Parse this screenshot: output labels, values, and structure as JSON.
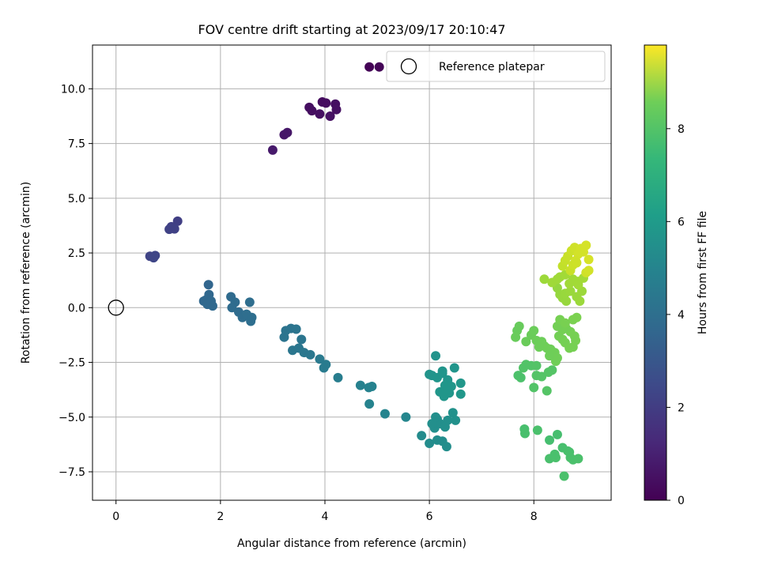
{
  "chart_data": {
    "type": "scatter",
    "title": "FOV centre drift starting at 2023/09/17 20:10:47",
    "xlabel": "Angular distance from reference (arcmin)",
    "ylabel": "Rotation from reference (arcmin)",
    "colorbar_label": "Hours from first FF file",
    "colormap": "viridis",
    "xlim": [
      -0.45,
      9.48
    ],
    "ylim": [
      -8.8,
      12.0
    ],
    "clim": [
      0,
      9.8
    ],
    "xticks": [
      0,
      2,
      4,
      6,
      8
    ],
    "yticks": [
      -7.5,
      -5.0,
      -2.5,
      0.0,
      2.5,
      5.0,
      7.5,
      10.0
    ],
    "cticks": [
      0,
      2,
      4,
      6,
      8
    ],
    "grid": true,
    "legend": {
      "position": "upper right",
      "entries": [
        "Reference platepar"
      ]
    },
    "reference_point": {
      "x": 0,
      "y": 0,
      "label": "Reference platepar"
    },
    "points": [
      [
        4.85,
        11.0,
        0.05
      ],
      [
        5.04,
        11.0,
        0.1
      ],
      [
        3.95,
        9.4,
        0.3
      ],
      [
        4.02,
        9.35,
        0.32
      ],
      [
        3.7,
        9.15,
        0.35
      ],
      [
        3.75,
        9.0,
        0.37
      ],
      [
        3.9,
        8.85,
        0.4
      ],
      [
        4.2,
        9.3,
        0.38
      ],
      [
        4.22,
        9.05,
        0.42
      ],
      [
        4.1,
        8.75,
        0.45
      ],
      [
        3.22,
        7.9,
        0.6
      ],
      [
        3.28,
        8.0,
        0.62
      ],
      [
        3.0,
        7.2,
        0.7
      ],
      [
        1.18,
        3.95,
        1.85
      ],
      [
        1.06,
        3.7,
        1.9
      ],
      [
        1.02,
        3.58,
        1.95
      ],
      [
        1.12,
        3.6,
        1.92
      ],
      [
        0.65,
        2.35,
        2.0
      ],
      [
        0.75,
        2.38,
        2.05
      ],
      [
        0.72,
        2.28,
        2.07
      ],
      [
        1.77,
        1.05,
        3.2
      ],
      [
        1.78,
        0.6,
        3.25
      ],
      [
        1.72,
        0.35,
        3.27
      ],
      [
        1.68,
        0.3,
        3.28
      ],
      [
        1.75,
        0.15,
        3.3
      ],
      [
        1.82,
        0.3,
        3.3
      ],
      [
        1.85,
        0.08,
        3.32
      ],
      [
        2.2,
        0.5,
        3.4
      ],
      [
        2.28,
        0.25,
        3.42
      ],
      [
        2.22,
        0.0,
        3.45
      ],
      [
        2.35,
        -0.2,
        3.45
      ],
      [
        2.42,
        -0.45,
        3.48
      ],
      [
        2.5,
        -0.3,
        3.5
      ],
      [
        2.56,
        0.25,
        3.5
      ],
      [
        2.6,
        -0.45,
        3.52
      ],
      [
        2.58,
        -0.62,
        3.52
      ],
      [
        3.25,
        -1.05,
        3.75
      ],
      [
        3.35,
        -0.95,
        3.78
      ],
      [
        3.45,
        -0.98,
        3.8
      ],
      [
        3.22,
        -1.35,
        3.77
      ],
      [
        3.55,
        -1.45,
        3.82
      ],
      [
        3.38,
        -1.95,
        3.85
      ],
      [
        3.5,
        -1.85,
        3.87
      ],
      [
        3.6,
        -2.05,
        3.88
      ],
      [
        3.72,
        -2.15,
        3.9
      ],
      [
        3.9,
        -2.35,
        4.0
      ],
      [
        4.02,
        -2.6,
        4.05
      ],
      [
        3.98,
        -2.75,
        4.08
      ],
      [
        4.25,
        -3.2,
        4.15
      ],
      [
        4.68,
        -3.55,
        4.3
      ],
      [
        4.84,
        -3.65,
        4.35
      ],
      [
        4.9,
        -3.6,
        4.37
      ],
      [
        4.85,
        -4.4,
        4.4
      ],
      [
        5.15,
        -4.85,
        4.45
      ],
      [
        5.55,
        -5.0,
        4.5
      ],
      [
        5.85,
        -5.85,
        4.7
      ],
      [
        6.0,
        -6.2,
        4.75
      ],
      [
        6.15,
        -6.05,
        4.78
      ],
      [
        6.25,
        -6.1,
        4.8
      ],
      [
        6.33,
        -6.35,
        4.82
      ],
      [
        6.1,
        -5.5,
        4.85
      ],
      [
        6.15,
        -5.1,
        4.87
      ],
      [
        6.2,
        -5.3,
        4.88
      ],
      [
        6.3,
        -5.45,
        4.9
      ],
      [
        6.35,
        -5.15,
        4.9
      ],
      [
        6.45,
        -4.8,
        4.92
      ],
      [
        6.5,
        -5.15,
        4.95
      ],
      [
        6.05,
        -5.3,
        4.88
      ],
      [
        6.12,
        -5.0,
        4.87
      ],
      [
        6.12,
        -2.2,
        5.0
      ],
      [
        6.0,
        -3.05,
        5.05
      ],
      [
        6.05,
        -3.1,
        5.05
      ],
      [
        6.15,
        -3.2,
        5.08
      ],
      [
        6.25,
        -3.0,
        5.1
      ],
      [
        6.35,
        -3.3,
        5.1
      ],
      [
        6.3,
        -3.55,
        5.12
      ],
      [
        6.2,
        -3.85,
        5.12
      ],
      [
        6.38,
        -3.9,
        5.14
      ],
      [
        6.28,
        -4.05,
        5.15
      ],
      [
        6.48,
        -2.75,
        5.1
      ],
      [
        6.6,
        -3.45,
        5.17
      ],
      [
        6.6,
        -3.95,
        5.17
      ],
      [
        6.42,
        -3.6,
        5.15
      ],
      [
        6.25,
        -2.9,
        5.1
      ],
      [
        6.32,
        -3.75,
        5.13
      ],
      [
        7.82,
        -5.55,
        6.9
      ],
      [
        7.83,
        -5.75,
        6.92
      ],
      [
        8.07,
        -5.6,
        6.95
      ],
      [
        8.3,
        -6.05,
        6.85
      ],
      [
        8.45,
        -5.8,
        6.87
      ],
      [
        8.55,
        -6.4,
        6.9
      ],
      [
        8.65,
        -6.55,
        6.92
      ],
      [
        8.3,
        -6.9,
        6.93
      ],
      [
        8.42,
        -6.85,
        6.95
      ],
      [
        8.58,
        -7.7,
        6.95
      ],
      [
        8.75,
        -6.95,
        6.95
      ],
      [
        8.85,
        -6.9,
        6.97
      ],
      [
        8.7,
        -6.85,
        6.96
      ],
      [
        8.4,
        -6.7,
        6.94
      ],
      [
        8.68,
        -6.6,
        6.93
      ],
      [
        7.7,
        -3.1,
        7.0
      ],
      [
        7.75,
        -3.2,
        7.0
      ],
      [
        7.85,
        -2.6,
        7.1
      ],
      [
        7.8,
        -2.75,
        7.08
      ],
      [
        7.95,
        -2.65,
        7.1
      ],
      [
        8.0,
        -3.65,
        7.1
      ],
      [
        8.05,
        -2.65,
        7.12
      ],
      [
        8.05,
        -3.1,
        7.12
      ],
      [
        8.15,
        -3.15,
        7.14
      ],
      [
        8.25,
        -3.8,
        7.15
      ],
      [
        8.28,
        -2.95,
        7.15
      ],
      [
        8.35,
        -2.85,
        7.15
      ],
      [
        7.72,
        -0.85,
        7.5
      ],
      [
        7.68,
        -1.05,
        7.5
      ],
      [
        7.65,
        -1.35,
        7.52
      ],
      [
        7.85,
        -1.55,
        7.55
      ],
      [
        7.95,
        -1.25,
        7.55
      ],
      [
        8.0,
        -1.05,
        7.57
      ],
      [
        8.05,
        -1.5,
        7.58
      ],
      [
        8.15,
        -1.55,
        7.6
      ],
      [
        8.2,
        -1.75,
        7.6
      ],
      [
        8.32,
        -1.9,
        7.62
      ],
      [
        8.4,
        -2.05,
        7.64
      ],
      [
        8.42,
        -2.45,
        7.65
      ],
      [
        8.45,
        -2.3,
        7.65
      ],
      [
        8.3,
        -2.2,
        7.62
      ],
      [
        8.25,
        -1.85,
        7.62
      ],
      [
        8.1,
        -1.8,
        7.6
      ],
      [
        8.48,
        -1.3,
        7.7
      ],
      [
        8.55,
        -1.45,
        7.72
      ],
      [
        8.6,
        -1.6,
        7.73
      ],
      [
        8.68,
        -1.85,
        7.74
      ],
      [
        8.75,
        -1.8,
        7.75
      ],
      [
        8.8,
        -1.5,
        7.76
      ],
      [
        8.78,
        -1.3,
        7.75
      ],
      [
        8.7,
        -1.1,
        7.74
      ],
      [
        8.62,
        -0.95,
        7.72
      ],
      [
        8.55,
        -1.0,
        7.72
      ],
      [
        8.45,
        -0.85,
        7.7
      ],
      [
        8.5,
        -0.55,
        7.75
      ],
      [
        8.75,
        -0.55,
        7.8
      ],
      [
        8.82,
        -0.45,
        7.82
      ],
      [
        8.6,
        -0.7,
        7.78
      ],
      [
        8.45,
        0.9,
        8.2
      ],
      [
        8.5,
        0.6,
        8.22
      ],
      [
        8.55,
        0.45,
        8.25
      ],
      [
        8.62,
        0.3,
        8.25
      ],
      [
        8.6,
        0.65,
        8.27
      ],
      [
        8.7,
        0.75,
        8.3
      ],
      [
        8.82,
        0.5,
        8.3
      ],
      [
        8.88,
        0.3,
        8.32
      ],
      [
        8.92,
        0.75,
        8.33
      ],
      [
        8.2,
        1.3,
        8.35
      ],
      [
        8.35,
        1.15,
        8.37
      ],
      [
        8.5,
        1.4,
        8.4
      ],
      [
        8.6,
        1.5,
        8.42
      ],
      [
        8.45,
        1.3,
        8.38
      ],
      [
        8.85,
        1.2,
        8.4
      ],
      [
        8.95,
        1.35,
        8.42
      ],
      [
        8.75,
        1.3,
        8.41
      ],
      [
        8.68,
        1.1,
        8.4
      ],
      [
        8.85,
        1.05,
        8.42
      ],
      [
        8.55,
        1.9,
        8.9
      ],
      [
        8.6,
        2.15,
        8.95
      ],
      [
        8.65,
        2.35,
        9.0
      ],
      [
        8.72,
        2.6,
        9.05
      ],
      [
        8.78,
        2.75,
        9.1
      ],
      [
        8.9,
        2.7,
        9.15
      ],
      [
        9.0,
        2.85,
        9.2
      ],
      [
        8.95,
        2.55,
        9.18
      ],
      [
        8.85,
        2.45,
        9.15
      ],
      [
        8.8,
        2.15,
        9.12
      ],
      [
        9.05,
        2.2,
        9.22
      ],
      [
        9.0,
        1.6,
        9.1
      ],
      [
        9.05,
        1.7,
        9.15
      ],
      [
        8.7,
        1.7,
        9.0
      ],
      [
        8.75,
        1.95,
        9.05
      ],
      [
        8.82,
        2.05,
        9.08
      ]
    ]
  }
}
